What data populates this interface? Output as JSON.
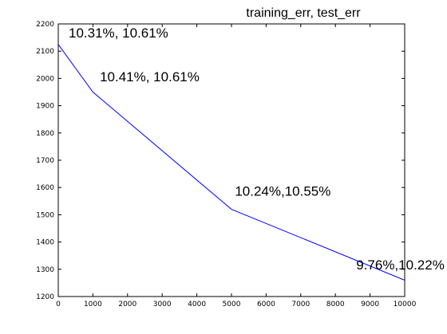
{
  "chart_data": {
    "type": "line",
    "title": "training_err, test_err",
    "xlabel": "",
    "ylabel": "",
    "xlim": [
      0,
      10000
    ],
    "ylim": [
      1200,
      2200
    ],
    "xticks": [
      "0",
      "1000",
      "2000",
      "3000",
      "4000",
      "5000",
      "6000",
      "7000",
      "8000",
      "9000",
      "10000"
    ],
    "yticks": [
      "1200",
      "1300",
      "1400",
      "1500",
      "1600",
      "1700",
      "1800",
      "1900",
      "2000",
      "2100",
      "2200"
    ],
    "grid": false,
    "legend": "none",
    "series": [
      {
        "color": "#0000ff",
        "x": [
          0,
          1000,
          5000,
          10000
        ],
        "y": [
          2125,
          1950,
          1520,
          1260
        ]
      }
    ],
    "annotations": [
      {
        "text": "10.31%, 10.61%",
        "x": 300,
        "y": 2150
      },
      {
        "text": "10.41%, 10.61%",
        "x": 1200,
        "y": 1990
      },
      {
        "text": "10.24%,10.55%",
        "x": 5100,
        "y": 1570
      },
      {
        "text": "9.76%,10.22%",
        "x": 8600,
        "y": 1300
      }
    ]
  }
}
